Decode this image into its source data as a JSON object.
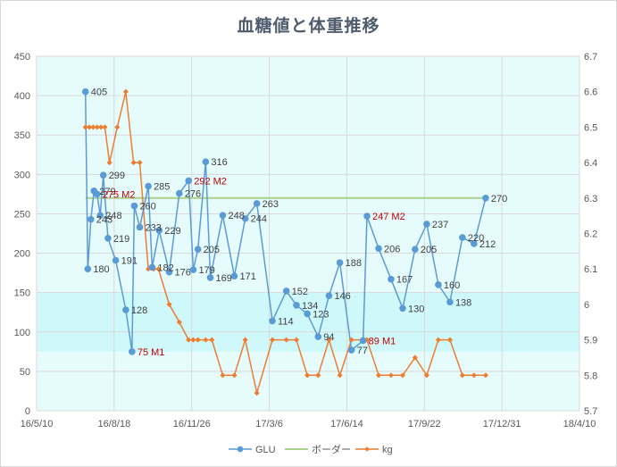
{
  "chart_data": {
    "type": "line",
    "title": "血糖値と体重推移",
    "xlabel": "",
    "ylabel": "",
    "x_ticks": [
      "16/5/10",
      "16/8/18",
      "16/11/26",
      "17/3/6",
      "17/6/14",
      "17/9/22",
      "17/12/31",
      "18/4/10"
    ],
    "xlim": [
      "2016-05-10",
      "2018-04-10"
    ],
    "ylim": [
      0,
      450
    ],
    "y_ticks": [
      "0",
      "50",
      "100",
      "150",
      "200",
      "250",
      "300",
      "350",
      "400",
      "450"
    ],
    "y2lim": [
      5.7,
      6.7
    ],
    "y2_ticks": [
      "5.7",
      "5.8",
      "5.9",
      "6",
      "6.1",
      "6.2",
      "6.3",
      "6.4",
      "6.5",
      "6.6",
      "6.7"
    ],
    "target_band": [
      75,
      150
    ],
    "plot_background": "#e6fbfc",
    "band_color": "#cff8fb",
    "grid": true,
    "legend_position": "bottom",
    "series": [
      {
        "name": "GLU",
        "axis": "left",
        "color": "#5b9bd5",
        "points": [
          {
            "x": "2016-07-12",
            "y": 405,
            "label": "405"
          },
          {
            "x": "2016-07-15",
            "y": 180,
            "label": "180"
          },
          {
            "x": "2016-07-19",
            "y": 243,
            "label": "243"
          },
          {
            "x": "2016-07-23",
            "y": 279,
            "label": "279"
          },
          {
            "x": "2016-07-27",
            "y": 275,
            "label": "275 M2",
            "highlight": true
          },
          {
            "x": "2016-07-31",
            "y": 248,
            "label": "248"
          },
          {
            "x": "2016-08-04",
            "y": 299,
            "label": "299"
          },
          {
            "x": "2016-08-10",
            "y": 219,
            "label": "219"
          },
          {
            "x": "2016-08-20",
            "y": 191,
            "label": "191"
          },
          {
            "x": "2016-09-02",
            "y": 128,
            "label": "128"
          },
          {
            "x": "2016-09-10",
            "y": 75,
            "label": "75 M1",
            "highlight": true
          },
          {
            "x": "2016-09-13",
            "y": 260,
            "label": "260"
          },
          {
            "x": "2016-09-20",
            "y": 233,
            "label": "233"
          },
          {
            "x": "2016-10-01",
            "y": 285,
            "label": "285"
          },
          {
            "x": "2016-10-06",
            "y": 182,
            "label": "182"
          },
          {
            "x": "2016-10-15",
            "y": 229,
            "label": "229"
          },
          {
            "x": "2016-10-28",
            "y": 176,
            "label": "176"
          },
          {
            "x": "2016-11-10",
            "y": 276,
            "label": "276"
          },
          {
            "x": "2016-11-22",
            "y": 292,
            "label": "292 M2",
            "highlight": true
          },
          {
            "x": "2016-11-28",
            "y": 179,
            "label": "179"
          },
          {
            "x": "2016-12-04",
            "y": 205,
            "label": "205"
          },
          {
            "x": "2016-12-14",
            "y": 316,
            "label": "316"
          },
          {
            "x": "2016-12-20",
            "y": 169,
            "label": "169"
          },
          {
            "x": "2017-01-05",
            "y": 248,
            "label": "248"
          },
          {
            "x": "2017-01-20",
            "y": 171,
            "label": "171"
          },
          {
            "x": "2017-02-03",
            "y": 244,
            "label": "244"
          },
          {
            "x": "2017-02-18",
            "y": 263,
            "label": "263"
          },
          {
            "x": "2017-03-10",
            "y": 114,
            "label": "114"
          },
          {
            "x": "2017-03-28",
            "y": 152,
            "label": "152"
          },
          {
            "x": "2017-04-10",
            "y": 134,
            "label": "134"
          },
          {
            "x": "2017-04-24",
            "y": 123,
            "label": "123"
          },
          {
            "x": "2017-05-08",
            "y": 94,
            "label": "94"
          },
          {
            "x": "2017-05-22",
            "y": 146,
            "label": "146"
          },
          {
            "x": "2017-06-05",
            "y": 188,
            "label": "188"
          },
          {
            "x": "2017-06-20",
            "y": 77,
            "label": "77"
          },
          {
            "x": "2017-07-05",
            "y": 89,
            "label": "89 M1",
            "highlight": true
          },
          {
            "x": "2017-07-10",
            "y": 247,
            "label": "247 M2",
            "highlight": true
          },
          {
            "x": "2017-07-25",
            "y": 206,
            "label": "206"
          },
          {
            "x": "2017-08-10",
            "y": 167,
            "label": "167"
          },
          {
            "x": "2017-08-25",
            "y": 130,
            "label": "130"
          },
          {
            "x": "2017-09-10",
            "y": 205,
            "label": "205"
          },
          {
            "x": "2017-09-25",
            "y": 237,
            "label": "237"
          },
          {
            "x": "2017-10-10",
            "y": 160,
            "label": "160"
          },
          {
            "x": "2017-10-25",
            "y": 138,
            "label": "138"
          },
          {
            "x": "2017-11-10",
            "y": 220,
            "label": "220"
          },
          {
            "x": "2017-11-25",
            "y": 212,
            "label": "212"
          },
          {
            "x": "2017-12-10",
            "y": 270,
            "label": "270"
          }
        ]
      },
      {
        "name": "ボーダー",
        "axis": "left",
        "color": "#a9d18e",
        "points": [
          {
            "x": "2016-07-12",
            "y": 270
          },
          {
            "x": "2017-12-10",
            "y": 270
          }
        ]
      },
      {
        "name": "kg",
        "axis": "right",
        "color": "#ed7d31",
        "points": [
          {
            "x": "2016-07-12",
            "y": 6.5
          },
          {
            "x": "2016-07-17",
            "y": 6.5
          },
          {
            "x": "2016-07-22",
            "y": 6.5
          },
          {
            "x": "2016-07-27",
            "y": 6.5
          },
          {
            "x": "2016-08-01",
            "y": 6.5
          },
          {
            "x": "2016-08-06",
            "y": 6.5
          },
          {
            "x": "2016-08-12",
            "y": 6.4
          },
          {
            "x": "2016-08-22",
            "y": 6.5
          },
          {
            "x": "2016-09-02",
            "y": 6.6
          },
          {
            "x": "2016-09-12",
            "y": 6.4
          },
          {
            "x": "2016-09-20",
            "y": 6.4
          },
          {
            "x": "2016-10-01",
            "y": 6.1
          },
          {
            "x": "2016-10-08",
            "y": 6.1
          },
          {
            "x": "2016-10-14",
            "y": 6.1
          },
          {
            "x": "2016-10-28",
            "y": 6.0
          },
          {
            "x": "2016-11-10",
            "y": 5.95
          },
          {
            "x": "2016-11-22",
            "y": 5.9
          },
          {
            "x": "2016-11-28",
            "y": 5.9
          },
          {
            "x": "2016-12-04",
            "y": 5.9
          },
          {
            "x": "2016-12-14",
            "y": 5.9
          },
          {
            "x": "2016-12-22",
            "y": 5.9
          },
          {
            "x": "2017-01-05",
            "y": 5.8
          },
          {
            "x": "2017-01-20",
            "y": 5.8
          },
          {
            "x": "2017-02-03",
            "y": 5.9
          },
          {
            "x": "2017-02-18",
            "y": 5.75
          },
          {
            "x": "2017-03-10",
            "y": 5.9
          },
          {
            "x": "2017-03-28",
            "y": 5.9
          },
          {
            "x": "2017-04-10",
            "y": 5.9
          },
          {
            "x": "2017-04-24",
            "y": 5.8
          },
          {
            "x": "2017-05-08",
            "y": 5.8
          },
          {
            "x": "2017-05-22",
            "y": 5.9
          },
          {
            "x": "2017-06-05",
            "y": 5.8
          },
          {
            "x": "2017-06-20",
            "y": 5.9
          },
          {
            "x": "2017-07-05",
            "y": 5.9
          },
          {
            "x": "2017-07-10",
            "y": 5.9
          },
          {
            "x": "2017-07-25",
            "y": 5.8
          },
          {
            "x": "2017-08-10",
            "y": 5.8
          },
          {
            "x": "2017-08-25",
            "y": 5.8
          },
          {
            "x": "2017-09-10",
            "y": 5.85
          },
          {
            "x": "2017-09-25",
            "y": 5.8
          },
          {
            "x": "2017-10-10",
            "y": 5.9
          },
          {
            "x": "2017-10-25",
            "y": 5.9
          },
          {
            "x": "2017-11-10",
            "y": 5.8
          },
          {
            "x": "2017-11-25",
            "y": 5.8
          },
          {
            "x": "2017-12-10",
            "y": 5.8
          }
        ]
      }
    ]
  }
}
